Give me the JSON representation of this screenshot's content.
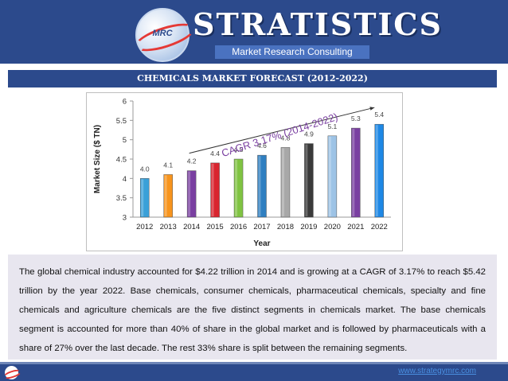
{
  "header": {
    "brand": "STRATISTICS",
    "tagline": "Market Research Consulting",
    "logo_text": "MRC"
  },
  "title": "CHEMICALS MARKET FORECAST (2012-2022)",
  "chart_data": {
    "type": "bar",
    "categories": [
      "2012",
      "2013",
      "2014",
      "2015",
      "2016",
      "2017",
      "2018",
      "2019",
      "2020",
      "2021",
      "2022"
    ],
    "values": [
      4.0,
      4.1,
      4.2,
      4.4,
      4.5,
      4.6,
      4.8,
      4.9,
      5.1,
      5.3,
      5.4
    ],
    "value_labels": [
      "4.0",
      "4.1",
      "4.2",
      "4.4",
      "4.5",
      "4.6",
      "4.8",
      "4.9",
      "5.1",
      "5.3",
      "5.4"
    ],
    "colors": [
      "#3aa0d8",
      "#f7941d",
      "#7a3fa1",
      "#d9252f",
      "#80c342",
      "#2f7fc1",
      "#a8a8a8",
      "#3a3a3a",
      "#9dc3e6",
      "#7a3fa1",
      "#1e88e5"
    ],
    "xlabel": "Year",
    "ylabel": "Market Size ($ TN)",
    "ylim": [
      3,
      6
    ],
    "yticks": [
      "3",
      "3.5",
      "4",
      "4.5",
      "5",
      "5.5",
      "6"
    ],
    "annotation": "CAGR 3.17% (2014-2022)",
    "grid": false,
    "legend": "none"
  },
  "body_text": "The global chemical industry accounted for $4.22 trillion in 2014 and is growing at a CAGR of 3.17% to reach $5.42 trillion by the year 2022. Base chemicals, consumer chemicals, pharmaceutical chemicals, specialty and fine chemicals and agriculture chemicals are the five distinct segments in chemicals market. The base chemicals segment is accounted for more than 40% of share in the global market and is followed by pharmaceuticals with a share of 27% over the last decade. The rest 33% share is split between the remaining segments.",
  "footer": {
    "url": "www.strategymrc.com"
  }
}
